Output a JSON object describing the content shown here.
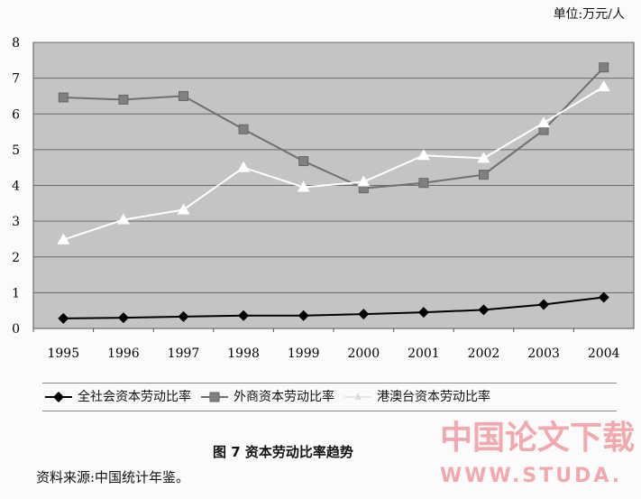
{
  "unit_label": "单位:万元/人",
  "chart_data": {
    "type": "line",
    "categories": [
      "1995",
      "1996",
      "1997",
      "1998",
      "1999",
      "2000",
      "2001",
      "2002",
      "2003",
      "2004"
    ],
    "ylim": [
      0,
      8
    ],
    "yticks": [
      "0",
      "1",
      "2",
      "3",
      "4",
      "5",
      "6",
      "7",
      "8"
    ],
    "grid": true,
    "legend_position": "bottom",
    "series": [
      {
        "name": "全社会资本劳动比率",
        "marker": "diamond",
        "color": "#000000",
        "values": [
          0.28,
          0.3,
          0.33,
          0.36,
          0.36,
          0.4,
          0.45,
          0.52,
          0.67,
          0.87
        ]
      },
      {
        "name": "外商资本劳动比率",
        "marker": "square",
        "color": "#707070",
        "values": [
          6.46,
          6.4,
          6.5,
          5.57,
          4.68,
          3.92,
          4.07,
          4.3,
          5.55,
          7.3
        ]
      },
      {
        "name": "港澳台资本劳动比率",
        "marker": "triangle",
        "color": "#ffffff",
        "values": [
          2.48,
          3.04,
          3.32,
          4.5,
          3.95,
          4.1,
          4.84,
          4.76,
          5.75,
          6.76
        ]
      }
    ]
  },
  "caption": "图 7   资本劳动比率趋势",
  "source": "资料来源:中国统计年鉴。",
  "watermark": {
    "line1": "中国论文下载",
    "line2": "WWW.STUDA."
  }
}
